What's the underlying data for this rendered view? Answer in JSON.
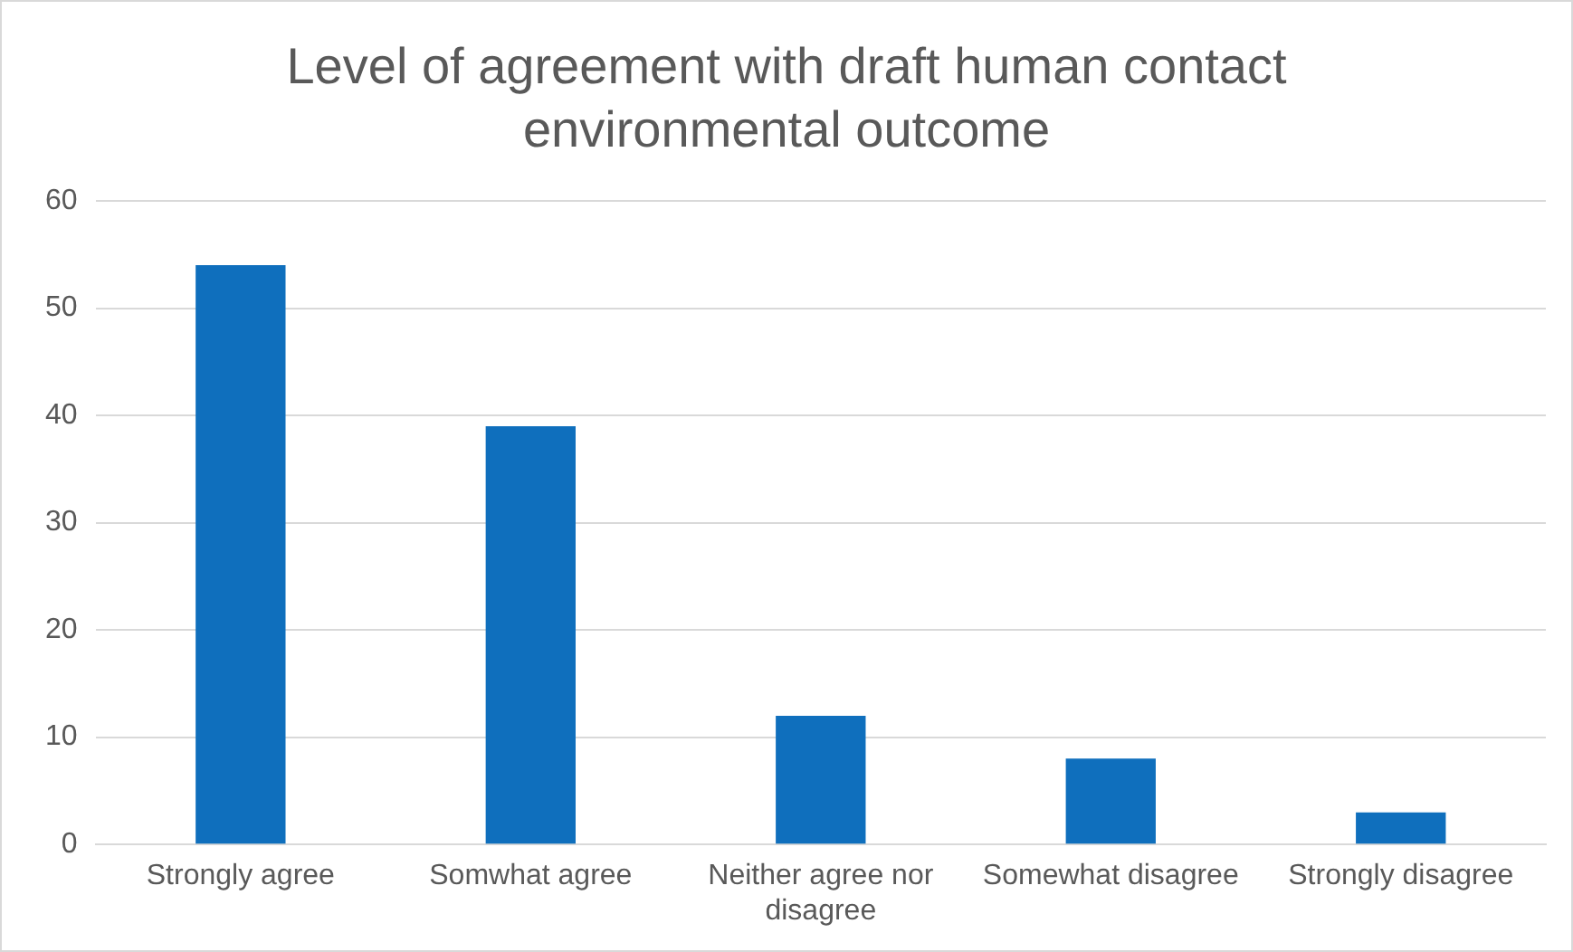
{
  "chart_data": {
    "type": "bar",
    "title": "Level of agreement with draft human contact environmental outcome",
    "categories": [
      "Strongly agree",
      "Somwhat agree",
      "Neither agree nor disagree",
      "Somewhat disagree",
      "Strongly disagree"
    ],
    "values": [
      54,
      39,
      12,
      8,
      3
    ],
    "color": "#0f6fbd",
    "ylim": [
      0,
      60
    ],
    "yticks": [
      0,
      10,
      20,
      30,
      40,
      50,
      60
    ],
    "grid": "y",
    "legend": false
  }
}
